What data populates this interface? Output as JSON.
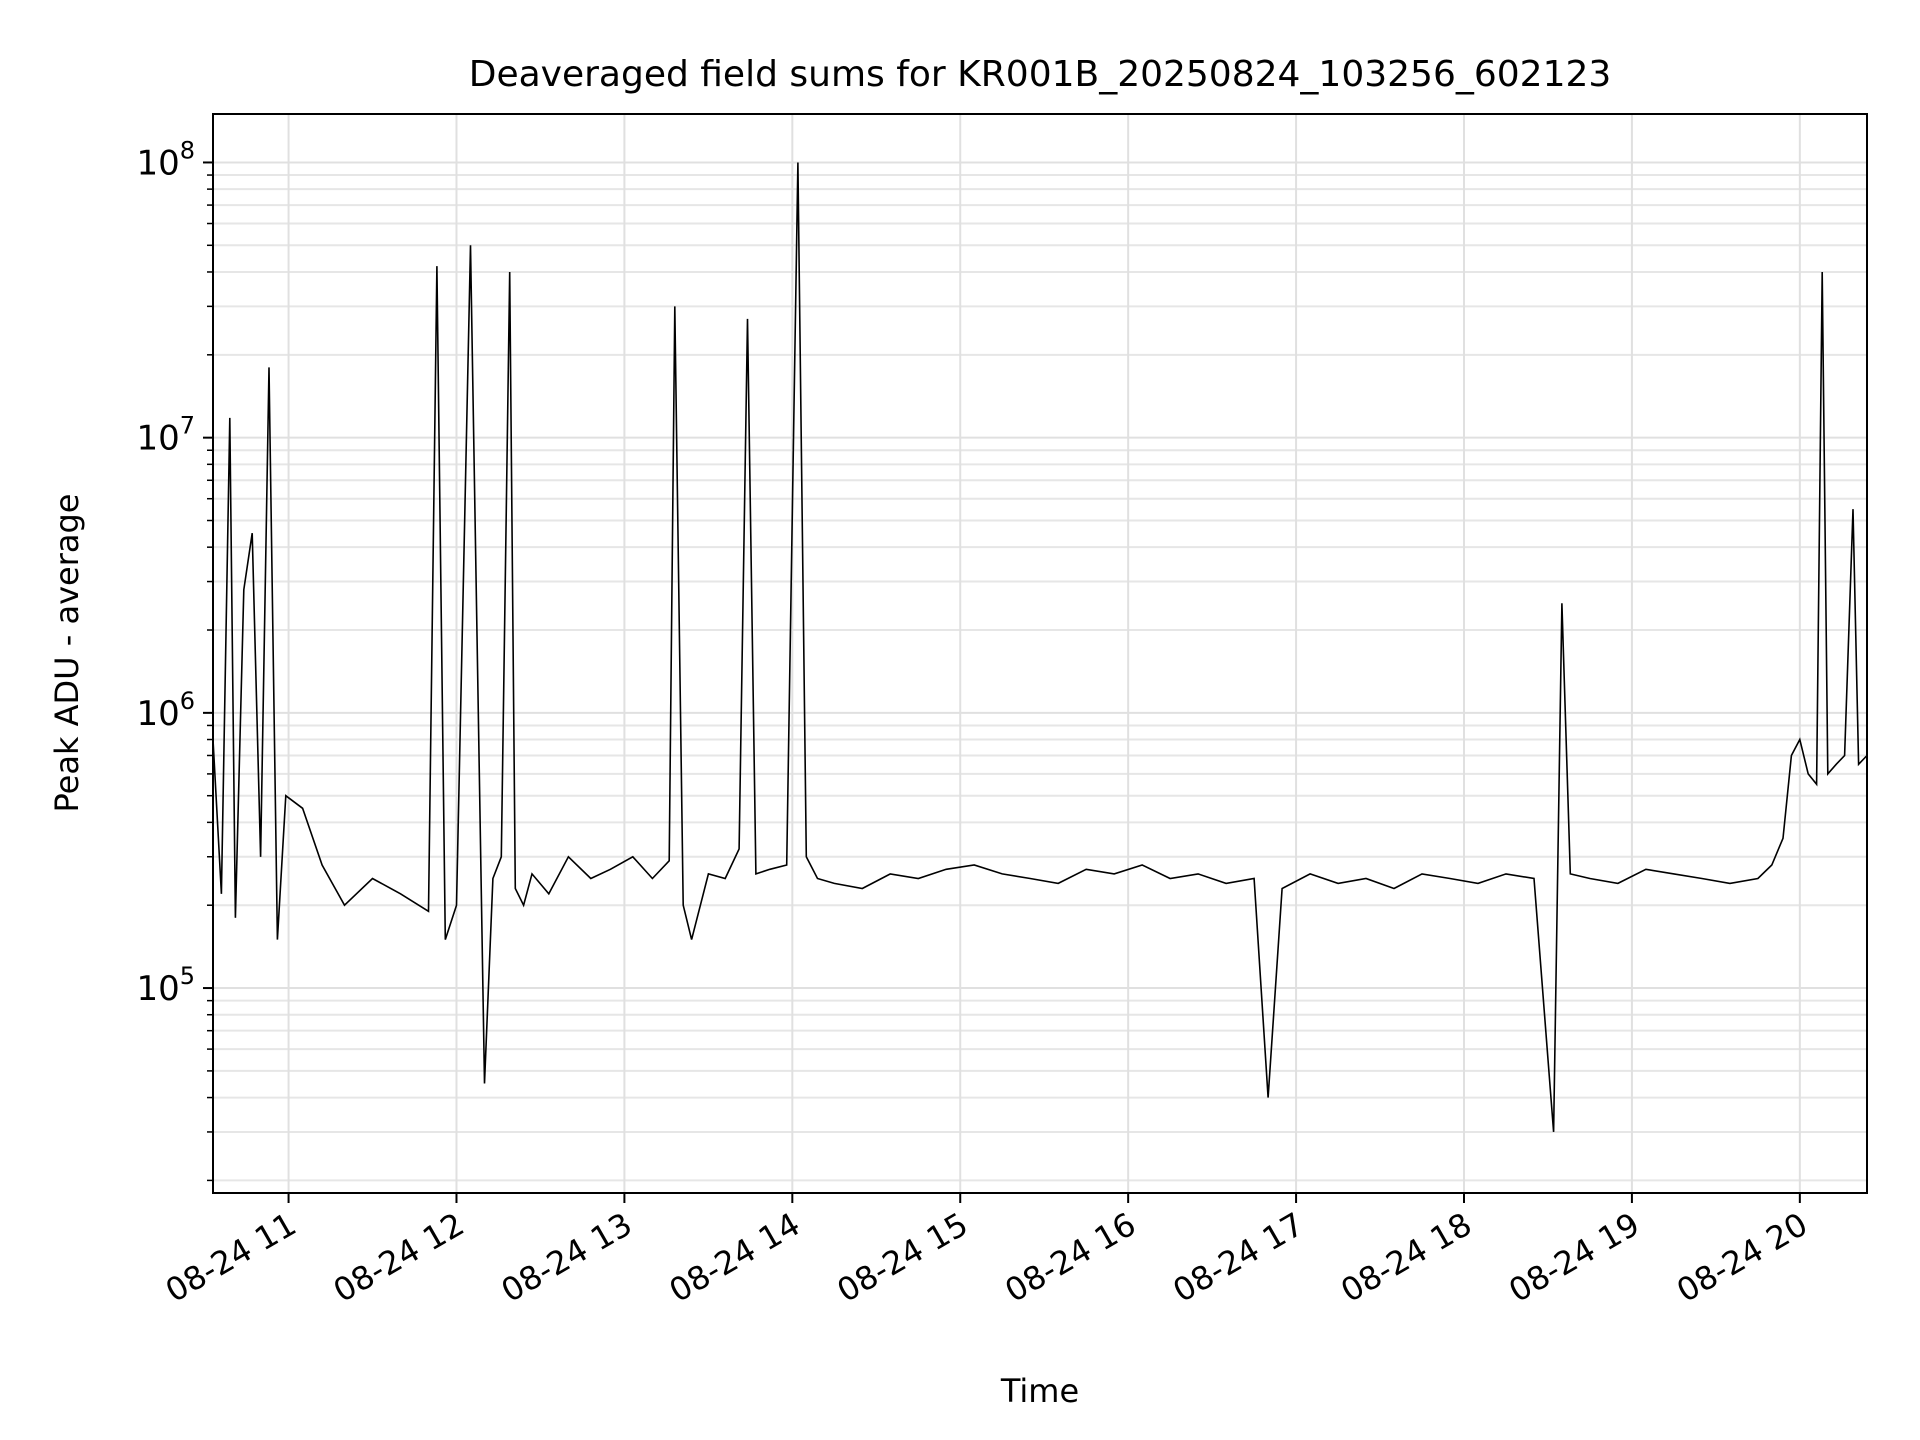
{
  "chart_data": {
    "type": "line",
    "title": "Deaveraged field sums for KR001B_20250824_103256_602123",
    "xlabel": "Time",
    "ylabel": "Peak ADU - average",
    "yscale": "log",
    "ylim": [
      18000,
      150000000
    ],
    "xlim": [
      "2025-08-24 10:33",
      "2025-08-24 20:24"
    ],
    "grid": true,
    "line_color": "#000000",
    "x_ticks": [
      {
        "value": "2025-08-24 11:00",
        "label": "08-24 11"
      },
      {
        "value": "2025-08-24 12:00",
        "label": "08-24 12"
      },
      {
        "value": "2025-08-24 13:00",
        "label": "08-24 13"
      },
      {
        "value": "2025-08-24 14:00",
        "label": "08-24 14"
      },
      {
        "value": "2025-08-24 15:00",
        "label": "08-24 15"
      },
      {
        "value": "2025-08-24 16:00",
        "label": "08-24 16"
      },
      {
        "value": "2025-08-24 17:00",
        "label": "08-24 17"
      },
      {
        "value": "2025-08-24 18:00",
        "label": "08-24 18"
      },
      {
        "value": "2025-08-24 19:00",
        "label": "08-24 19"
      },
      {
        "value": "2025-08-24 20:00",
        "label": "08-24 20"
      }
    ],
    "y_ticks": [
      {
        "value": 100000,
        "base": "10",
        "exp": "5"
      },
      {
        "value": 1000000,
        "base": "10",
        "exp": "6"
      },
      {
        "value": 10000000,
        "base": "10",
        "exp": "7"
      },
      {
        "value": 100000000,
        "base": "10",
        "exp": "8"
      }
    ],
    "series": [
      {
        "x": [
          "2025-08-24 10:33",
          "2025-08-24 10:36",
          "2025-08-24 10:39",
          "2025-08-24 10:41",
          "2025-08-24 10:44",
          "2025-08-24 10:47",
          "2025-08-24 10:50",
          "2025-08-24 10:53",
          "2025-08-24 10:56",
          "2025-08-24 10:59",
          "2025-08-24 11:05",
          "2025-08-24 11:12",
          "2025-08-24 11:20",
          "2025-08-24 11:30",
          "2025-08-24 11:40",
          "2025-08-24 11:50",
          "2025-08-24 11:53",
          "2025-08-24 11:56",
          "2025-08-24 12:00",
          "2025-08-24 12:05",
          "2025-08-24 12:10",
          "2025-08-24 12:13",
          "2025-08-24 12:16",
          "2025-08-24 12:19",
          "2025-08-24 12:21",
          "2025-08-24 12:24",
          "2025-08-24 12:27",
          "2025-08-24 12:33",
          "2025-08-24 12:40",
          "2025-08-24 12:48",
          "2025-08-24 12:55",
          "2025-08-24 13:03",
          "2025-08-24 13:10",
          "2025-08-24 13:16",
          "2025-08-24 13:18",
          "2025-08-24 13:21",
          "2025-08-24 13:24",
          "2025-08-24 13:30",
          "2025-08-24 13:36",
          "2025-08-24 13:41",
          "2025-08-24 13:44",
          "2025-08-24 13:47",
          "2025-08-24 13:52",
          "2025-08-24 13:58",
          "2025-08-24 14:02",
          "2025-08-24 14:05",
          "2025-08-24 14:09",
          "2025-08-24 14:15",
          "2025-08-24 14:25",
          "2025-08-24 14:35",
          "2025-08-24 14:45",
          "2025-08-24 14:55",
          "2025-08-24 15:05",
          "2025-08-24 15:15",
          "2025-08-24 15:25",
          "2025-08-24 15:35",
          "2025-08-24 15:45",
          "2025-08-24 15:55",
          "2025-08-24 16:05",
          "2025-08-24 16:15",
          "2025-08-24 16:25",
          "2025-08-24 16:35",
          "2025-08-24 16:45",
          "2025-08-24 16:50",
          "2025-08-24 16:55",
          "2025-08-24 17:05",
          "2025-08-24 17:15",
          "2025-08-24 17:25",
          "2025-08-24 17:35",
          "2025-08-24 17:45",
          "2025-08-24 17:55",
          "2025-08-24 18:05",
          "2025-08-24 18:15",
          "2025-08-24 18:25",
          "2025-08-24 18:32",
          "2025-08-24 18:35",
          "2025-08-24 18:38",
          "2025-08-24 18:45",
          "2025-08-24 18:55",
          "2025-08-24 19:05",
          "2025-08-24 19:15",
          "2025-08-24 19:25",
          "2025-08-24 19:35",
          "2025-08-24 19:45",
          "2025-08-24 19:50",
          "2025-08-24 19:54",
          "2025-08-24 19:57",
          "2025-08-24 20:00",
          "2025-08-24 20:03",
          "2025-08-24 20:06",
          "2025-08-24 20:08",
          "2025-08-24 20:10",
          "2025-08-24 20:13",
          "2025-08-24 20:16",
          "2025-08-24 20:19",
          "2025-08-24 20:21",
          "2025-08-24 20:24"
        ],
        "y": [
          800000,
          220000,
          11800000,
          180000,
          2800000,
          4500000,
          300000,
          18000000,
          150000,
          500000,
          450000,
          280000,
          200000,
          250000,
          220000,
          190000,
          42000000,
          150000,
          200000,
          50000000,
          45000,
          250000,
          300000,
          40000000,
          230000,
          200000,
          260000,
          220000,
          300000,
          250000,
          270000,
          300000,
          250000,
          290000,
          30000000,
          200000,
          150000,
          260000,
          250000,
          320000,
          27000000,
          260000,
          270000,
          280000,
          100000000,
          300000,
          250000,
          240000,
          230000,
          260000,
          250000,
          270000,
          280000,
          260000,
          250000,
          240000,
          270000,
          260000,
          280000,
          250000,
          260000,
          240000,
          250000,
          40000,
          230000,
          260000,
          240000,
          250000,
          230000,
          260000,
          250000,
          240000,
          260000,
          250000,
          30000,
          2500000,
          260000,
          250000,
          240000,
          270000,
          260000,
          250000,
          240000,
          250000,
          280000,
          350000,
          700000,
          800000,
          600000,
          550000,
          40000000,
          600000,
          650000,
          700000,
          5500000,
          650000,
          700000
        ]
      }
    ]
  }
}
